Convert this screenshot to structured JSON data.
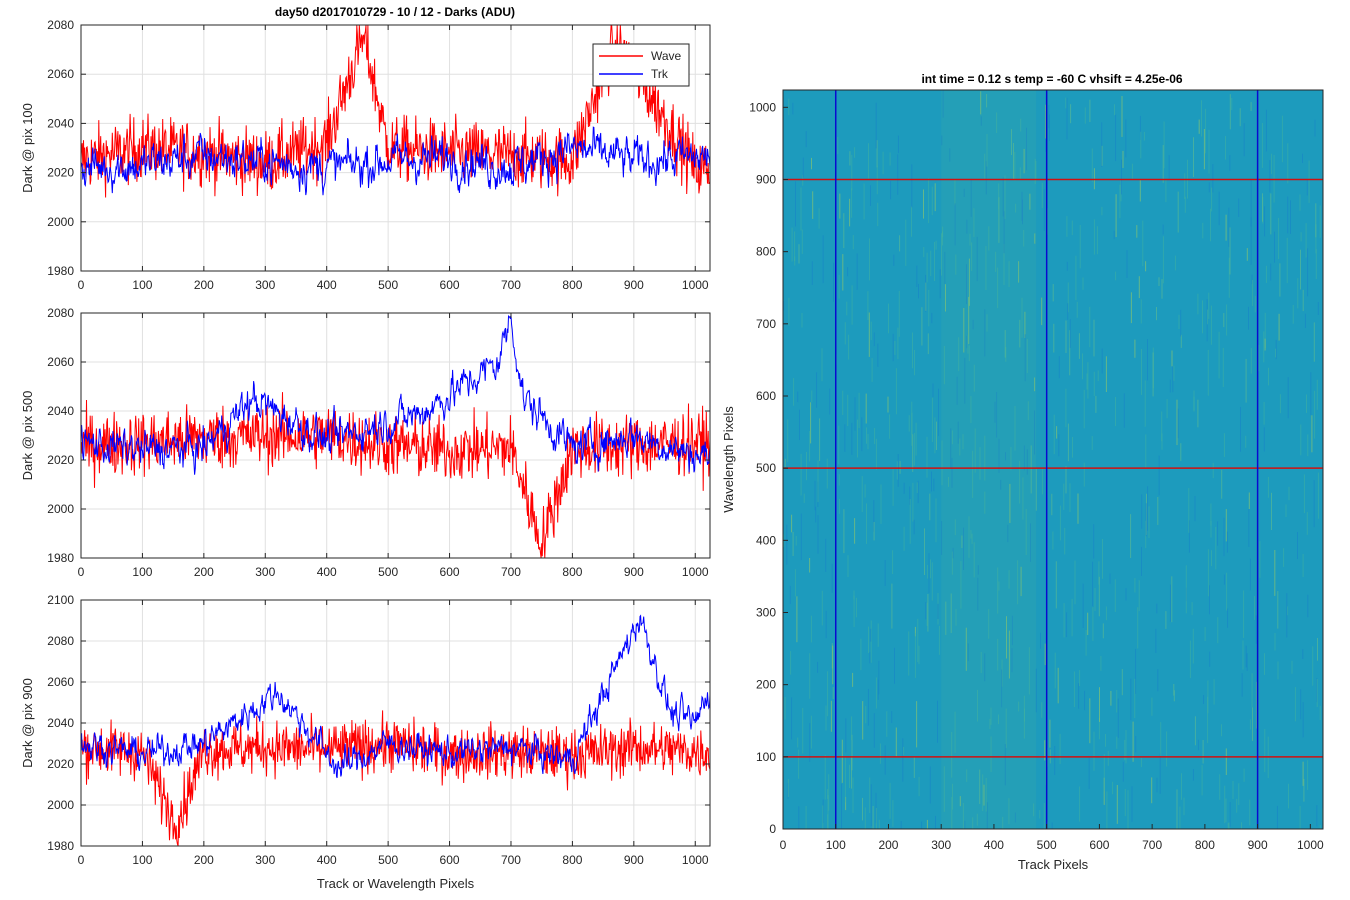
{
  "figure_title": "day50 d2017010729 - 10 / 12 - Darks (ADU)",
  "heatmap_title": "int time = 0.12 s    temp = -60 C    vhsift = 4.25e-06",
  "colors": {
    "wave": "#ff0000",
    "trk": "#0000ff",
    "heat_base": "#1d9bbd"
  },
  "chart_data": [
    {
      "type": "line",
      "ylabel": "Dark @ pix 100",
      "xlim": [
        0,
        1024
      ],
      "ylim": [
        1980,
        2080
      ],
      "xticks": [
        0,
        100,
        200,
        300,
        400,
        500,
        600,
        700,
        800,
        900,
        1000
      ],
      "yticks": [
        1980,
        2000,
        2020,
        2040,
        2060,
        2080
      ],
      "grid": true,
      "legend": "top-right",
      "series": [
        {
          "name": "Wave",
          "baseline": 2027,
          "noise": 12,
          "values_sample": [
            [
              0,
              2025
            ],
            [
              100,
              2030
            ],
            [
              200,
              2028
            ],
            [
              300,
              2024
            ],
            [
              400,
              2032
            ],
            [
              460,
              2076
            ],
            [
              500,
              2030
            ],
            [
              600,
              2028
            ],
            [
              700,
              2027
            ],
            [
              800,
              2025
            ],
            [
              870,
              2074
            ],
            [
              1000,
              2022
            ]
          ]
        },
        {
          "name": "Trk",
          "baseline": 2025,
          "noise": 8,
          "values_sample": [
            [
              0,
              2022
            ],
            [
              100,
              2023
            ],
            [
              200,
              2027
            ],
            [
              300,
              2024
            ],
            [
              400,
              2022
            ],
            [
              500,
              2025
            ],
            [
              600,
              2026
            ],
            [
              700,
              2022
            ],
            [
              800,
              2030
            ],
            [
              900,
              2025
            ],
            [
              1000,
              2026
            ]
          ]
        }
      ]
    },
    {
      "type": "line",
      "ylabel": "Dark @ pix 500",
      "xlim": [
        0,
        1024
      ],
      "ylim": [
        1980,
        2080
      ],
      "xticks": [
        0,
        100,
        200,
        300,
        400,
        500,
        600,
        700,
        800,
        900,
        1000
      ],
      "yticks": [
        1980,
        2000,
        2020,
        2040,
        2060,
        2080
      ],
      "grid": true,
      "series": [
        {
          "name": "Wave",
          "baseline": 2026,
          "noise": 12,
          "values_sample": [
            [
              0,
              2026
            ],
            [
              100,
              2027
            ],
            [
              200,
              2029
            ],
            [
              300,
              2030
            ],
            [
              400,
              2030
            ],
            [
              500,
              2026
            ],
            [
              600,
              2024
            ],
            [
              700,
              2025
            ],
            [
              750,
              1986
            ],
            [
              800,
              2025
            ],
            [
              900,
              2026
            ],
            [
              1000,
              2027
            ]
          ]
        },
        {
          "name": "Trk",
          "baseline": 2025,
          "noise": 7,
          "values_sample": [
            [
              0,
              2027
            ],
            [
              100,
              2024
            ],
            [
              200,
              2025
            ],
            [
              280,
              2045
            ],
            [
              400,
              2028
            ],
            [
              560,
              2040
            ],
            [
              680,
              2060
            ],
            [
              700,
              2079
            ],
            [
              720,
              2045
            ],
            [
              800,
              2025
            ],
            [
              900,
              2030
            ],
            [
              1000,
              2022
            ]
          ]
        }
      ]
    },
    {
      "type": "line",
      "ylabel": "Dark @ pix 900",
      "xlabel": "Track or Wavelength Pixels",
      "xlim": [
        0,
        1024
      ],
      "ylim": [
        1980,
        2100
      ],
      "xticks": [
        0,
        100,
        200,
        300,
        400,
        500,
        600,
        700,
        800,
        900,
        1000
      ],
      "yticks": [
        1980,
        2000,
        2020,
        2040,
        2060,
        2080,
        2100
      ],
      "grid": true,
      "series": [
        {
          "name": "Wave",
          "baseline": 2027,
          "noise": 12,
          "values_sample": [
            [
              0,
              2028
            ],
            [
              100,
              2026
            ],
            [
              155,
              1990
            ],
            [
              200,
              2027
            ],
            [
              300,
              2028
            ],
            [
              400,
              2027
            ],
            [
              500,
              2030
            ],
            [
              600,
              2025
            ],
            [
              700,
              2026
            ],
            [
              800,
              2024
            ],
            [
              900,
              2028
            ],
            [
              1000,
              2026
            ]
          ]
        },
        {
          "name": "Trk",
          "baseline": 2026,
          "noise": 7,
          "values_sample": [
            [
              0,
              2030
            ],
            [
              100,
              2025
            ],
            [
              200,
              2030
            ],
            [
              320,
              2055
            ],
            [
              420,
              2018
            ],
            [
              500,
              2030
            ],
            [
              600,
              2025
            ],
            [
              700,
              2028
            ],
            [
              800,
              2022
            ],
            [
              910,
              2092
            ],
            [
              960,
              2045
            ],
            [
              1000,
              2040
            ],
            [
              1020,
              2055
            ]
          ]
        }
      ]
    },
    {
      "type": "heatmap",
      "title": "int time = 0.12 s    temp = -60 C    vhsift = 4.25e-06",
      "xlabel": "Track Pixels",
      "ylabel": "Wavelength Pixels",
      "xlim": [
        0,
        1024
      ],
      "ylim": [
        0,
        1024
      ],
      "xticks": [
        0,
        100,
        200,
        300,
        400,
        500,
        600,
        700,
        800,
        900,
        1000
      ],
      "yticks": [
        0,
        100,
        200,
        300,
        400,
        500,
        600,
        700,
        800,
        900,
        1000
      ],
      "vlines": [
        100,
        500,
        900
      ],
      "hlines": [
        100,
        500,
        900
      ]
    }
  ]
}
